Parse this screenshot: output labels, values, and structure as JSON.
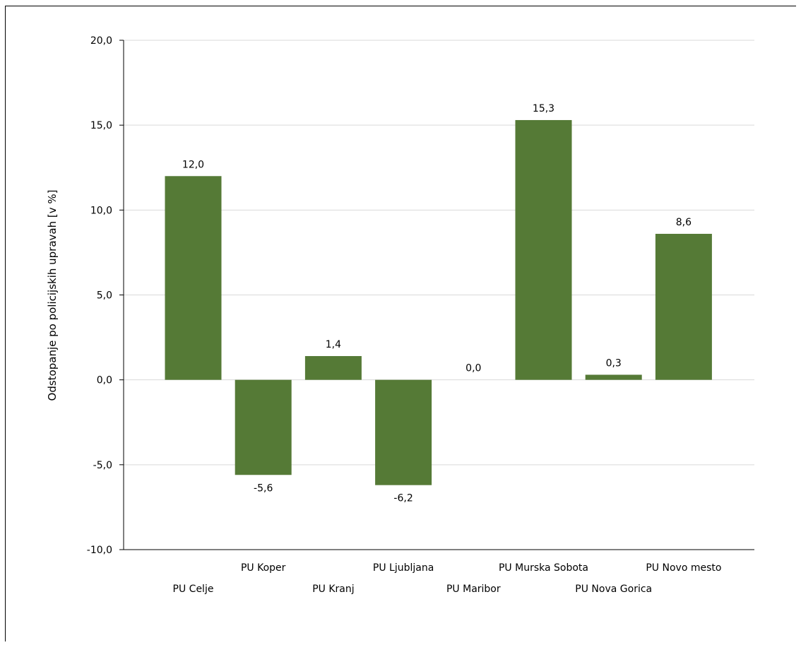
{
  "chart_data": {
    "type": "bar",
    "categories": [
      "PU Celje",
      "PU Koper",
      "PU Kranj",
      "PU Ljubljana",
      "PU Maribor",
      "PU Murska Sobota",
      "PU Nova Gorica",
      "PU Novo mesto"
    ],
    "values": [
      12.0,
      -5.6,
      1.4,
      -6.2,
      0.0,
      15.3,
      0.3,
      8.6
    ],
    "value_labels": [
      "12,0",
      "-5,6",
      "1,4",
      "-6,2",
      "0,0",
      "15,3",
      "0,3",
      "8,6"
    ],
    "title": "",
    "xlabel": "",
    "ylabel": "Odstopanje po policijskih upravah [v %]",
    "ylim": [
      -10,
      20
    ],
    "yticks": [
      20,
      15,
      10,
      5,
      0,
      -5,
      -10
    ],
    "ytick_labels": [
      "20,0",
      "15,0",
      "10,0",
      "5,0",
      "0,0",
      "-5,0",
      "-10,0"
    ],
    "grid": true,
    "legend": "none",
    "bar_color": "#557a36",
    "grid_color": "#d9d9d9",
    "axis_color": "#000000"
  }
}
